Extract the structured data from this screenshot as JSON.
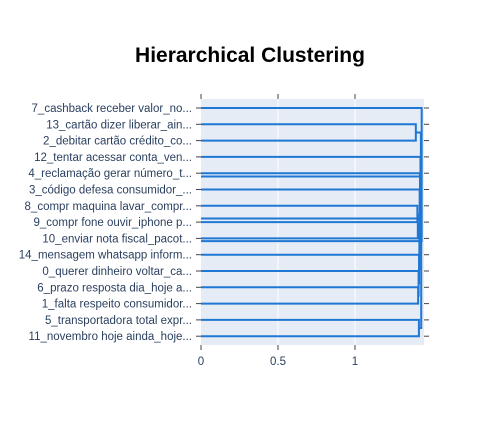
{
  "chart_data": {
    "type": "dendrogram",
    "orientation": "horizontal",
    "title": "Hierarchical Clustering",
    "xlabel": "",
    "ylabel": "",
    "xlim": [
      0,
      1.45
    ],
    "x_ticks": [
      0,
      0.5,
      1
    ],
    "x_tick_labels": [
      "0",
      "0.5",
      "1"
    ],
    "leaves": [
      "7_cashback receber valor_no...",
      "13_cartão dizer liberar_ain...",
      "2_debitar cartão crédito_co...",
      "12_tentar acessar conta_ven...",
      "4_reclamação gerar número_t...",
      "3_código defesa consumidor_...",
      "8_compr maquina lavar_compr...",
      "9_compr fone ouvir_iphone p...",
      "10_enviar nota fiscal_pacot...",
      "14_mensagem whatsapp inform...",
      "0_querer dinheiro voltar_ca...",
      "6_prazo resposta dia_hoje a...",
      "1_falta respeito consumidor...",
      "5_transportadora total expr...",
      "11_novembro hoje ainda_hoje..."
    ],
    "links": [
      {
        "a": 1,
        "b": 2,
        "distance": 1.395
      },
      {
        "a": 6,
        "b": 7,
        "distance": 1.405
      },
      {
        "a": 6.5,
        "b": 8,
        "distance": 1.408
      },
      {
        "a": 11,
        "b": 12,
        "distance": 1.41
      },
      {
        "a": 13,
        "b": 14,
        "distance": 1.415
      },
      {
        "a": 10,
        "b": 11.5,
        "distance": 1.413
      },
      {
        "a": 9,
        "b": 10.75,
        "distance": 1.416
      },
      {
        "a": 7.25,
        "b": 9.875,
        "distance": 1.418
      },
      {
        "a": 5,
        "b": 8.5625,
        "distance": 1.42
      },
      {
        "a": 4,
        "b": 6.78,
        "distance": 1.422
      },
      {
        "a": 3,
        "b": 5.39,
        "distance": 1.425
      },
      {
        "a": 1.5,
        "b": 4.2,
        "distance": 1.428
      },
      {
        "a": 2.85,
        "b": 13.5,
        "distance": 1.43
      },
      {
        "a": 0,
        "b": 8.17,
        "distance": 1.433
      }
    ],
    "line_color": "#1f77d4",
    "plot_bgcolor": "#e5ecf6",
    "grid": true
  }
}
